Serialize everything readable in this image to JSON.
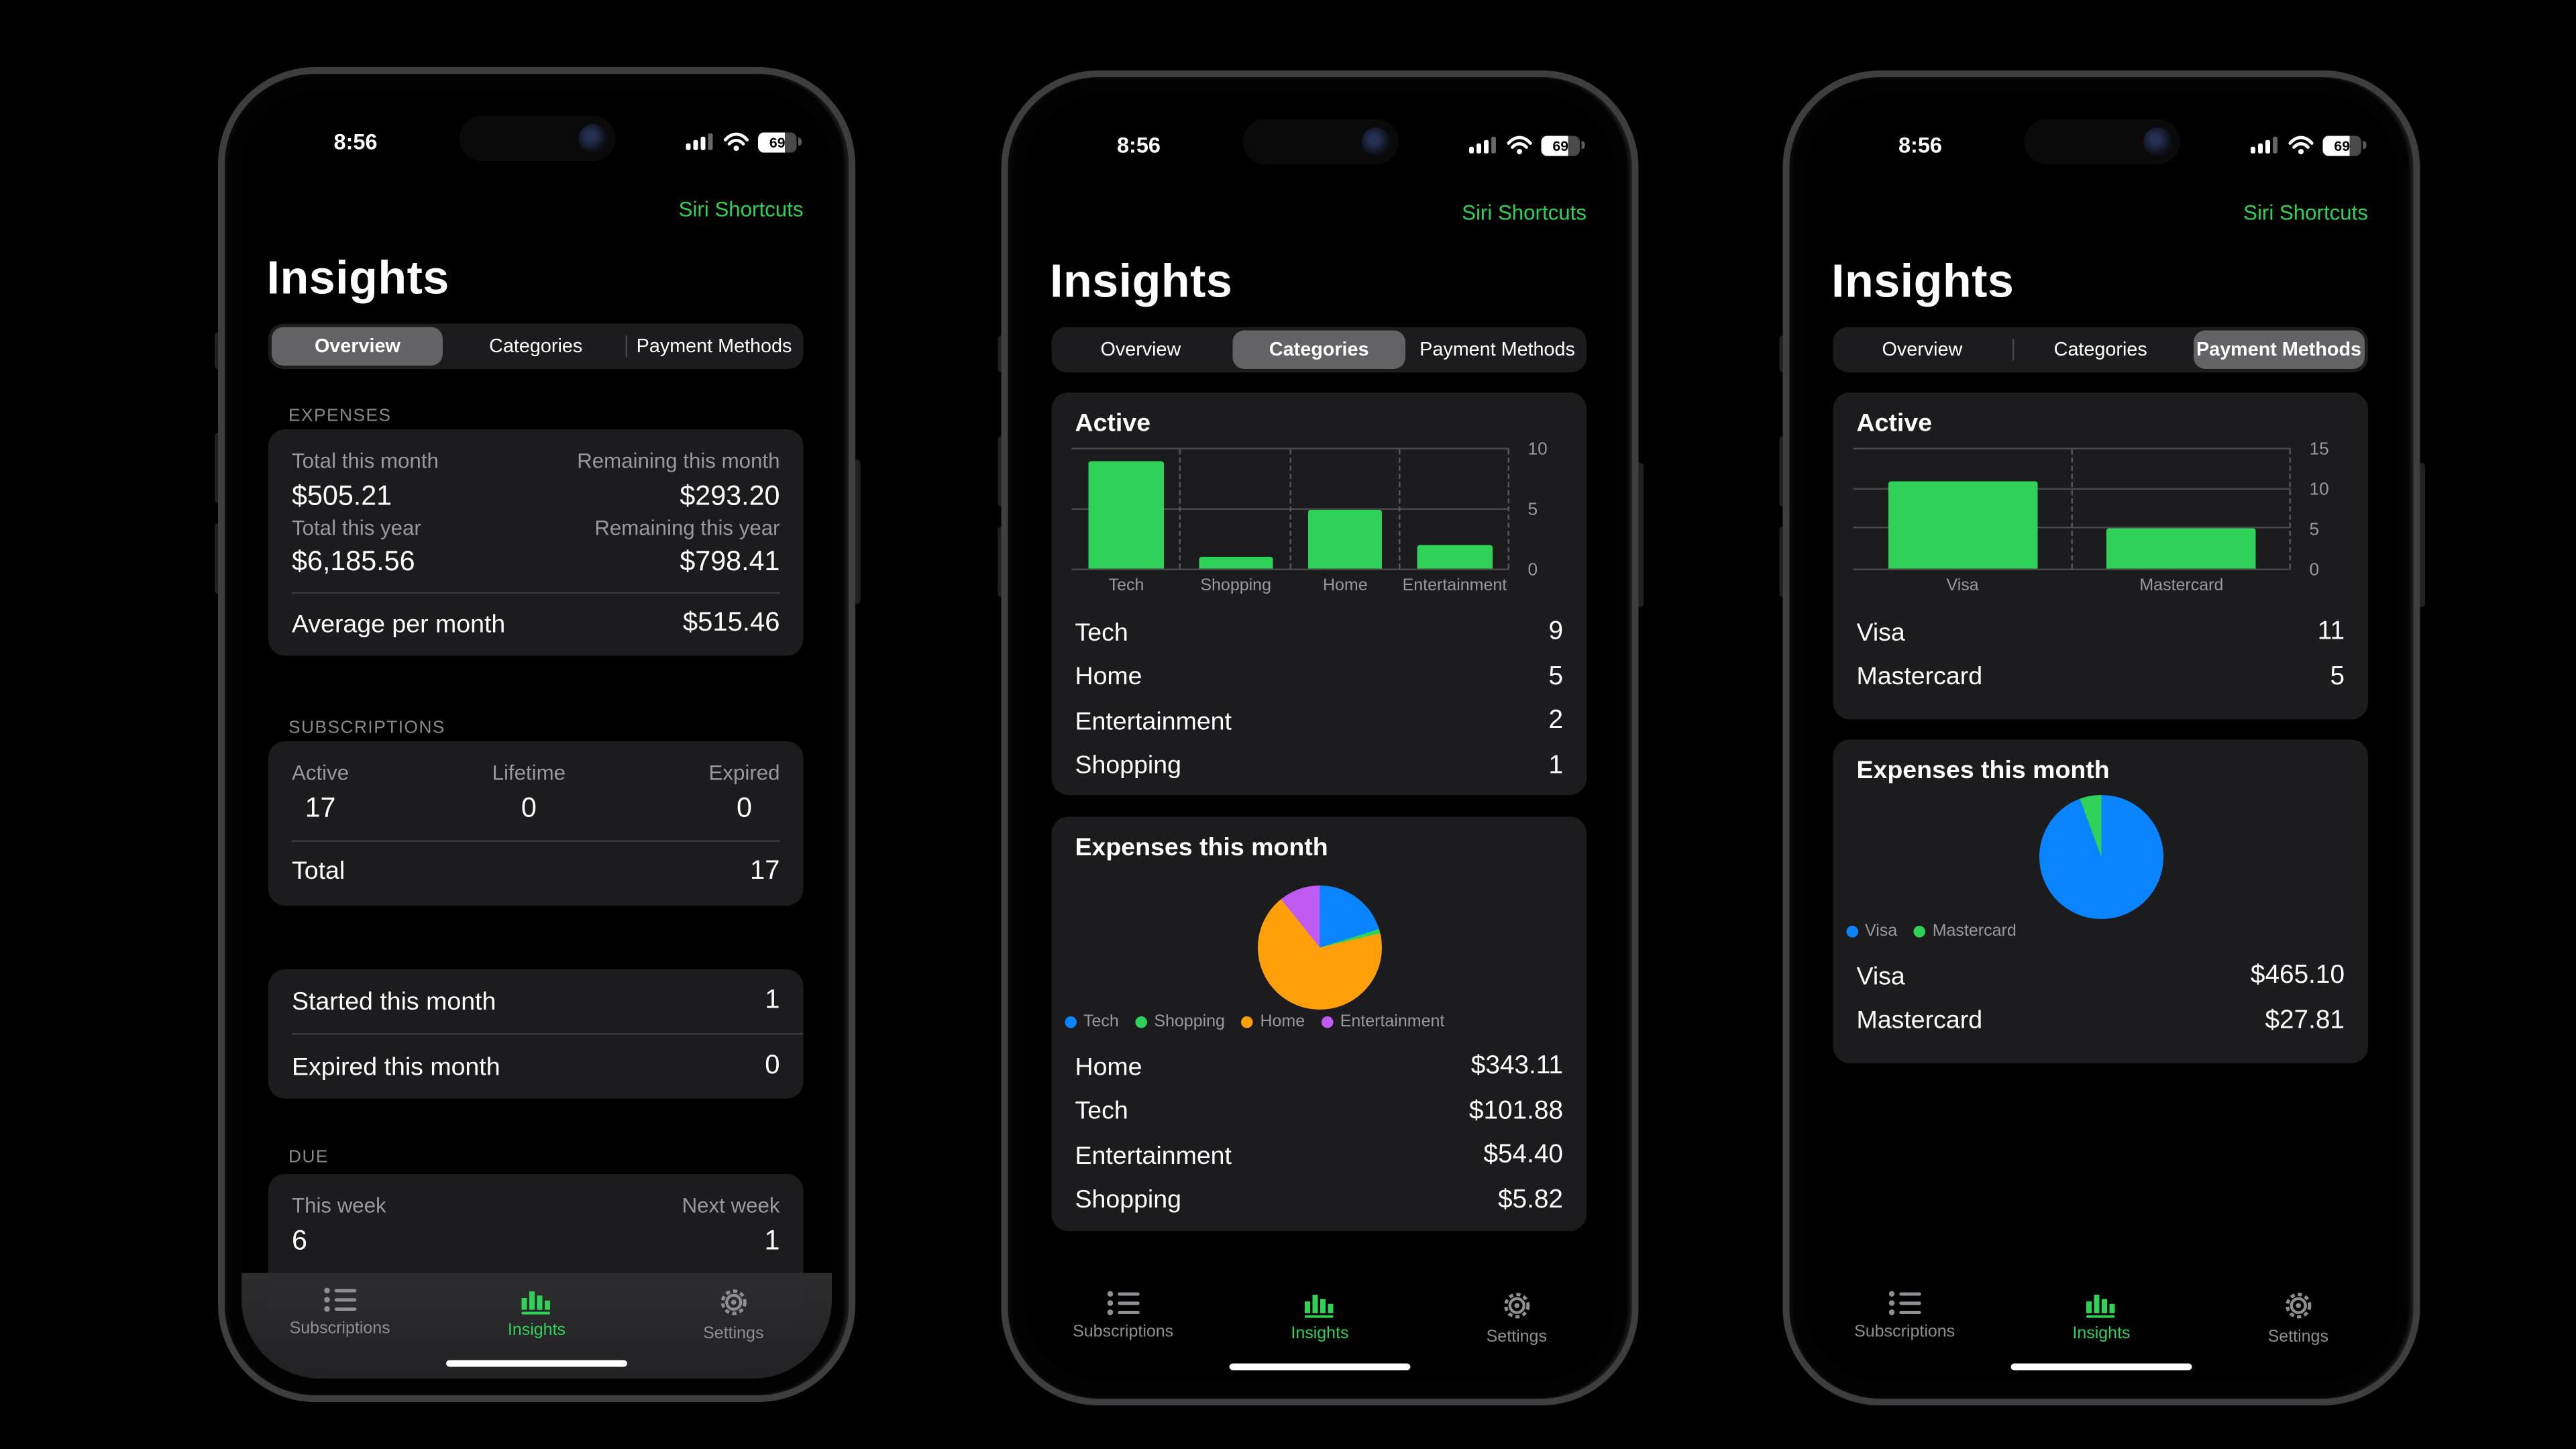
{
  "app": {
    "status": {
      "time": "8:56",
      "battery": "69"
    },
    "siri_label": "Siri Shortcuts",
    "title": "Insights",
    "tabs": [
      "Overview",
      "Categories",
      "Payment Methods"
    ],
    "tabbar": [
      "Subscriptions",
      "Insights",
      "Settings"
    ],
    "icons": [
      "list-icon",
      "bar-chart-icon",
      "gear-icon",
      "cellular-signal-icon",
      "wifi-icon",
      "battery-icon"
    ],
    "colors": {
      "accent_green": "#30d158",
      "blue": "#0a84ff",
      "orange": "#ff9f0a",
      "purple": "#bf5af2",
      "card": "#1c1c1e"
    }
  },
  "phones": [
    {
      "selected_tab": 0,
      "expenses_label": "EXPENSES",
      "expenses": {
        "rows": [
          {
            "l_label": "Total this month",
            "l_value": "$505.21",
            "r_label": "Remaining this month",
            "r_value": "$293.20"
          },
          {
            "l_label": "Total this year",
            "l_value": "$6,185.56",
            "r_label": "Remaining this year",
            "r_value": "$798.41"
          }
        ],
        "footer_label": "Average per month",
        "footer_value": "$515.46"
      },
      "subscriptions_label": "SUBSCRIPTIONS",
      "subscriptions": {
        "cols": [
          {
            "label": "Active",
            "value": "17"
          },
          {
            "label": "Lifetime",
            "value": "0"
          },
          {
            "label": "Expired",
            "value": "0"
          }
        ],
        "total_label": "Total",
        "total_value": "17"
      },
      "monthly": [
        {
          "label": "Started this month",
          "value": "1"
        },
        {
          "label": "Expired this month",
          "value": "0"
        }
      ],
      "due_label": "DUE",
      "due": {
        "labels": [
          "This week",
          "Next week"
        ],
        "values": [
          "6",
          "1"
        ]
      }
    },
    {
      "selected_tab": 1,
      "active_title": "Active",
      "chart": {
        "ymax": 10,
        "yticks": [
          0,
          5,
          10
        ],
        "bar_color": "#30d158",
        "categories": [
          "Tech",
          "Shopping",
          "Home",
          "Entertainment"
        ],
        "values": [
          9,
          1,
          5,
          2
        ]
      },
      "counts": [
        {
          "label": "Tech",
          "value": "9"
        },
        {
          "label": "Home",
          "value": "5"
        },
        {
          "label": "Entertainment",
          "value": "2"
        },
        {
          "label": "Shopping",
          "value": "1"
        }
      ],
      "pie_title": "Expenses this month",
      "pie": {
        "slices": [
          {
            "label": "Tech",
            "value": 101.88,
            "color": "#0a84ff"
          },
          {
            "label": "Shopping",
            "value": 5.82,
            "color": "#30d158"
          },
          {
            "label": "Home",
            "value": 343.11,
            "color": "#ff9f0a"
          },
          {
            "label": "Entertainment",
            "value": 54.4,
            "color": "#bf5af2"
          }
        ]
      },
      "amounts": [
        {
          "label": "Home",
          "value": "$343.11"
        },
        {
          "label": "Tech",
          "value": "$101.88"
        },
        {
          "label": "Entertainment",
          "value": "$54.40"
        },
        {
          "label": "Shopping",
          "value": "$5.82"
        }
      ]
    },
    {
      "selected_tab": 2,
      "active_title": "Active",
      "chart": {
        "ymax": 15,
        "yticks": [
          0,
          5,
          10,
          15
        ],
        "bar_color": "#30d158",
        "categories": [
          "Visa",
          "Mastercard"
        ],
        "values": [
          11,
          5
        ]
      },
      "counts": [
        {
          "label": "Visa",
          "value": "11"
        },
        {
          "label": "Mastercard",
          "value": "5"
        }
      ],
      "pie_title": "Expenses this month",
      "pie": {
        "slices": [
          {
            "label": "Visa",
            "value": 465.1,
            "color": "#0a84ff"
          },
          {
            "label": "Mastercard",
            "value": 27.81,
            "color": "#30d158"
          }
        ]
      },
      "amounts": [
        {
          "label": "Visa",
          "value": "$465.10"
        },
        {
          "label": "Mastercard",
          "value": "$27.81"
        }
      ]
    }
  ],
  "chart_data": [
    {
      "type": "bar",
      "title": "Active (Categories)",
      "categories": [
        "Tech",
        "Shopping",
        "Home",
        "Entertainment"
      ],
      "values": [
        9,
        1,
        5,
        2
      ],
      "ylim": [
        0,
        10
      ],
      "yticks": [
        0,
        5,
        10
      ],
      "bar_color": "#30d158",
      "grid": true,
      "axis_side": "right"
    },
    {
      "type": "pie",
      "title": "Expenses this month (Categories)",
      "labels": [
        "Tech",
        "Shopping",
        "Home",
        "Entertainment"
      ],
      "values": [
        101.88,
        5.82,
        343.11,
        54.4
      ],
      "colors": [
        "#0a84ff",
        "#30d158",
        "#ff9f0a",
        "#bf5af2"
      ],
      "legend_position": "bottom"
    },
    {
      "type": "bar",
      "title": "Active (Payment Methods)",
      "categories": [
        "Visa",
        "Mastercard"
      ],
      "values": [
        11,
        5
      ],
      "ylim": [
        0,
        15
      ],
      "yticks": [
        0,
        5,
        10,
        15
      ],
      "bar_color": "#30d158",
      "grid": true,
      "axis_side": "right"
    },
    {
      "type": "pie",
      "title": "Expenses this month (Payment Methods)",
      "labels": [
        "Visa",
        "Mastercard"
      ],
      "values": [
        465.1,
        27.81
      ],
      "colors": [
        "#0a84ff",
        "#30d158"
      ],
      "legend_position": "bottom"
    }
  ]
}
